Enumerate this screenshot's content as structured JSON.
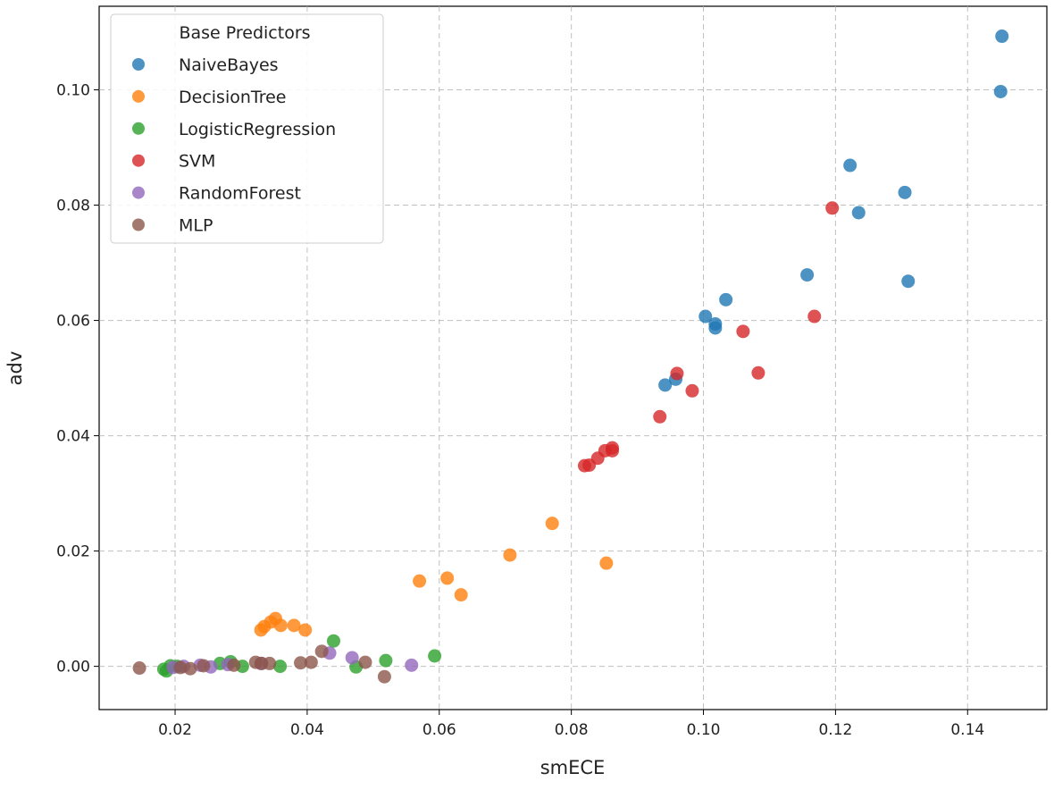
{
  "chart_data": {
    "type": "scatter",
    "title": "",
    "xlabel": "smECE",
    "ylabel": "adv",
    "xlim": [
      0.0085,
      0.152
    ],
    "ylim": [
      -0.0075,
      0.1145
    ],
    "xticks": [
      0.02,
      0.04,
      0.06,
      0.08,
      0.1,
      0.12,
      0.14
    ],
    "xtick_labels": [
      "0.02",
      "0.04",
      "0.06",
      "0.08",
      "0.10",
      "0.12",
      "0.14"
    ],
    "yticks": [
      0.0,
      0.02,
      0.04,
      0.06,
      0.08,
      0.1
    ],
    "ytick_labels": [
      "0.00",
      "0.02",
      "0.04",
      "0.06",
      "0.08",
      "0.10"
    ],
    "grid": true,
    "legend": {
      "title": "Base Predictors",
      "position": "top-left"
    },
    "series": [
      {
        "name": "NaiveBayes",
        "color": "#1f77b4",
        "x": [
          0.1452,
          0.145,
          0.1222,
          0.1305,
          0.1235,
          0.1157,
          0.131,
          0.1034,
          0.1003,
          0.1018,
          0.1018,
          0.0958,
          0.0942
        ],
        "y": [
          0.1093,
          0.0997,
          0.0869,
          0.0822,
          0.0787,
          0.0679,
          0.0668,
          0.0636,
          0.0607,
          0.0594,
          0.0587,
          0.0498,
          0.0488
        ]
      },
      {
        "name": "DecisionTree",
        "color": "#ff7f0e",
        "x": [
          0.0771,
          0.0853,
          0.0707,
          0.0612,
          0.057,
          0.0633,
          0.0352,
          0.0345,
          0.0335,
          0.033,
          0.036,
          0.038,
          0.0397
        ],
        "y": [
          0.0248,
          0.0179,
          0.0193,
          0.0153,
          0.0148,
          0.0124,
          0.0083,
          0.0077,
          0.0069,
          0.0063,
          0.0071,
          0.0071,
          0.0063
        ]
      },
      {
        "name": "LogisticRegression",
        "color": "#2ca02c",
        "x": [
          0.0183,
          0.0187,
          0.0193,
          0.0203,
          0.0268,
          0.0284,
          0.0302,
          0.0359,
          0.044,
          0.0474,
          0.0519,
          0.0593
        ],
        "y": [
          -0.0005,
          -0.0008,
          0.0001,
          0.0,
          0.0005,
          0.0008,
          0.0,
          0.0,
          0.0044,
          -0.0001,
          0.001,
          0.0018
        ]
      },
      {
        "name": "SVM",
        "color": "#d62728",
        "x": [
          0.1195,
          0.1168,
          0.106,
          0.1083,
          0.096,
          0.0983,
          0.0934,
          0.0862,
          0.0862,
          0.0851,
          0.084,
          0.0827,
          0.082
        ],
        "y": [
          0.0795,
          0.0607,
          0.0581,
          0.0509,
          0.0508,
          0.0478,
          0.0433,
          0.0379,
          0.0374,
          0.0374,
          0.0361,
          0.0349,
          0.0348
        ]
      },
      {
        "name": "RandomForest",
        "color": "#9467bd",
        "x": [
          0.0197,
          0.0213,
          0.0238,
          0.0254,
          0.028,
          0.033,
          0.0434,
          0.0468,
          0.0558
        ],
        "y": [
          -0.0002,
          0.0,
          0.0002,
          -0.0001,
          0.0003,
          0.0005,
          0.0023,
          0.0015,
          0.0002
        ]
      },
      {
        "name": "MLP",
        "color": "#8c564b",
        "x": [
          0.0146,
          0.0208,
          0.0223,
          0.0243,
          0.0289,
          0.0322,
          0.0331,
          0.0343,
          0.039,
          0.0406,
          0.0422,
          0.0488,
          0.0517
        ],
        "y": [
          -0.0003,
          -0.0002,
          -0.0004,
          0.0001,
          0.0002,
          0.0007,
          0.0005,
          0.0005,
          0.0006,
          0.0007,
          0.0026,
          0.0007,
          -0.0018
        ]
      }
    ]
  }
}
